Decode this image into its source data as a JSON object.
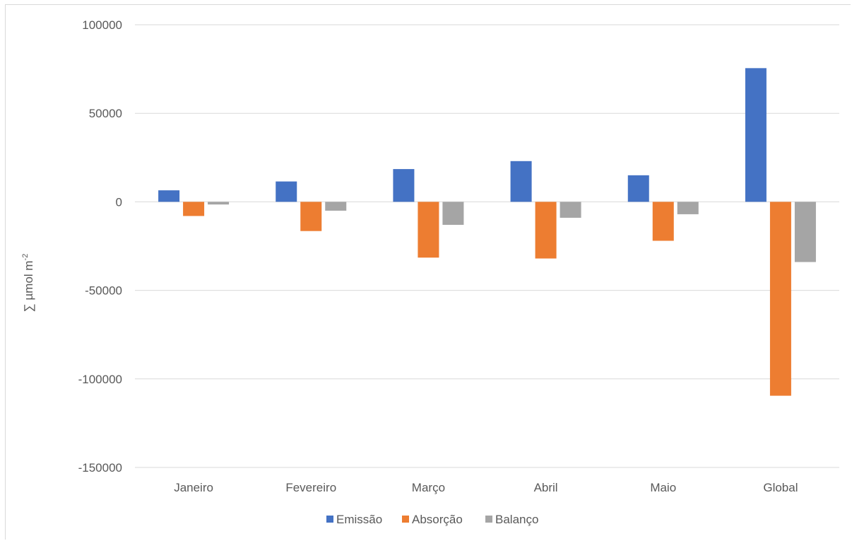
{
  "chart_data": {
    "type": "bar",
    "title": "",
    "xlabel": "",
    "ylabel": "∑ µmol m",
    "ylabel_superscript": "-2",
    "categories": [
      "Janeiro",
      "Fevereiro",
      "Março",
      "Abril",
      "Maio",
      "Global"
    ],
    "series": [
      {
        "name": "Emissão",
        "color": "#4472C4",
        "values": [
          6500,
          11500,
          18500,
          23000,
          15000,
          75500
        ]
      },
      {
        "name": "Absorção",
        "color": "#ED7D31",
        "values": [
          -8000,
          -16500,
          -31500,
          -32000,
          -22000,
          -109500
        ]
      },
      {
        "name": "Balanço",
        "color": "#A5A5A5",
        "values": [
          -1500,
          -5000,
          -13000,
          -9000,
          -7000,
          -34000
        ]
      }
    ],
    "ylim": [
      -150000,
      100000
    ],
    "yticks": [
      100000,
      50000,
      0,
      -50000,
      -100000,
      -150000
    ],
    "ytick_labels": [
      "100000",
      "50000",
      "0",
      "-50000",
      "-100000",
      "-150000"
    ],
    "grid": true,
    "legend_position": "bottom"
  }
}
